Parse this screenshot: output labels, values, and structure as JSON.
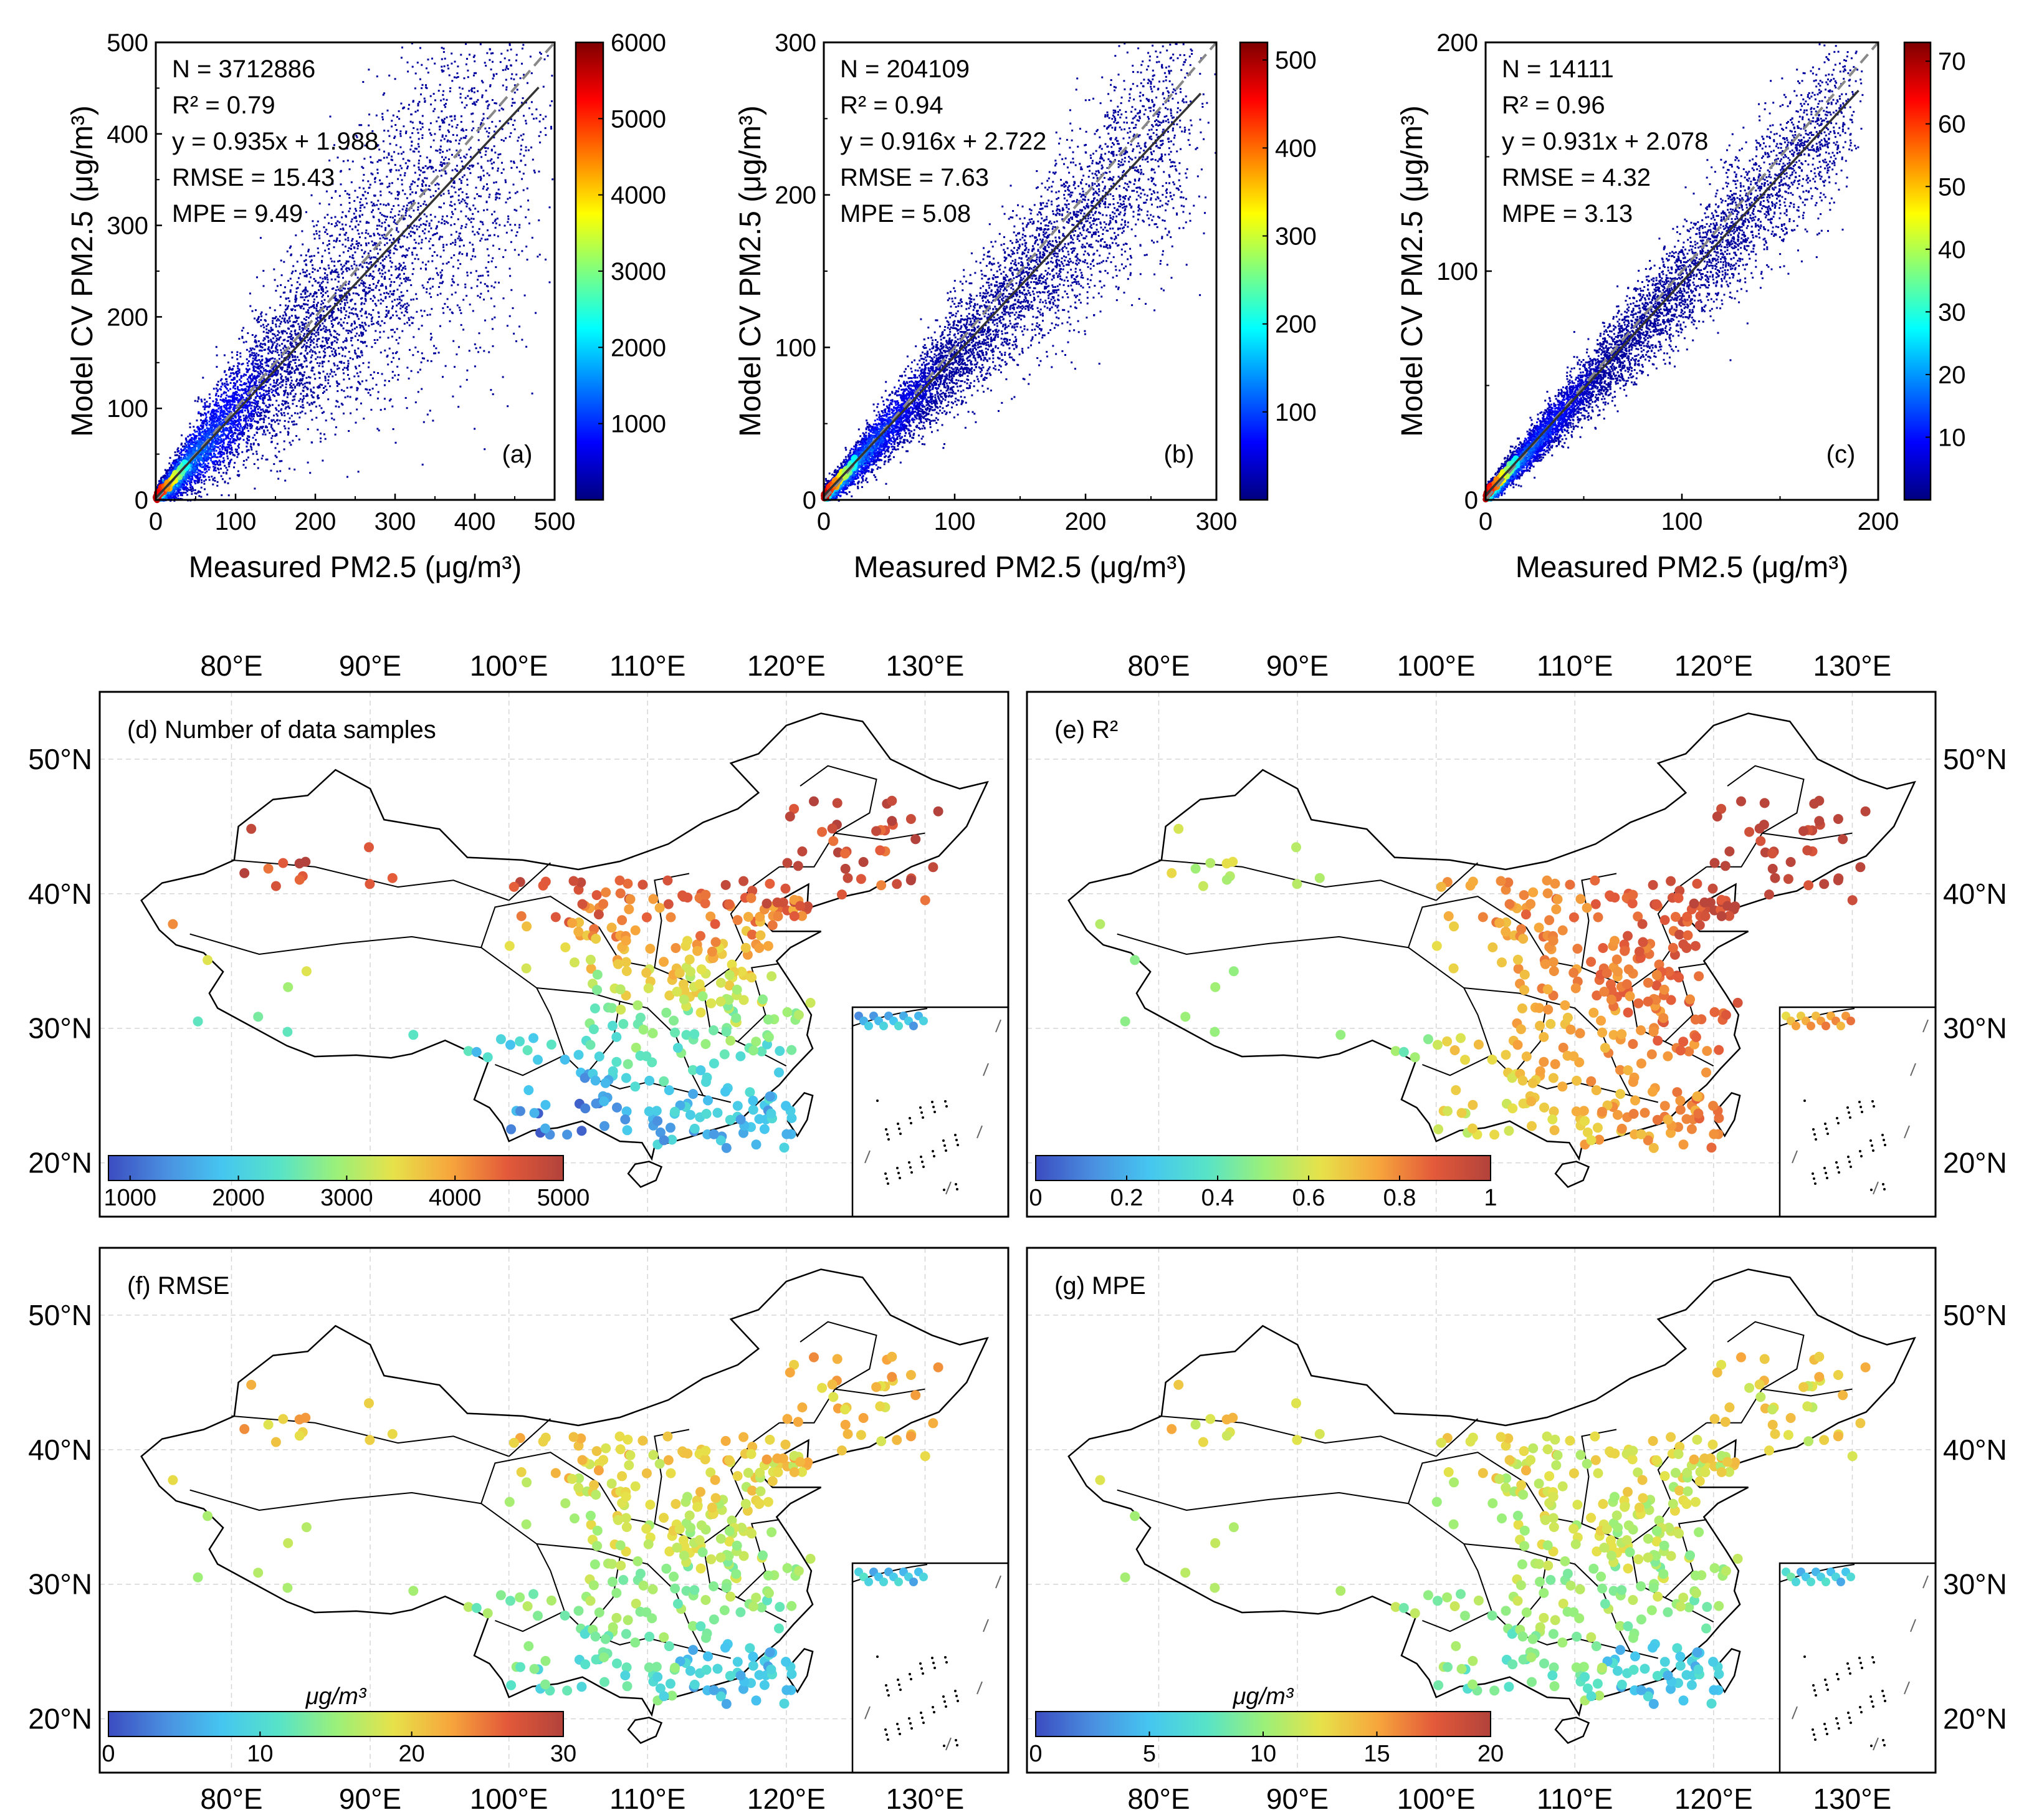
{
  "colors": {
    "jet": [
      "#00007f",
      "#0000ff",
      "#007fff",
      "#00ffff",
      "#7fff7f",
      "#ffff00",
      "#ff7f00",
      "#ff0000",
      "#7f0000"
    ],
    "map_cmap": [
      "#3b4cc0",
      "#4a8fe0",
      "#45c6f0",
      "#57e3c8",
      "#9af07a",
      "#e6e24a",
      "#f7a73c",
      "#e35a3a",
      "#b2423b"
    ],
    "fit_line": "#333333",
    "one_to_one": "#888888",
    "border": "#000000"
  },
  "chart_data": [
    {
      "type": "scatter",
      "panel": "(a)",
      "title": "(a)",
      "xlabel": "Measured PM2.5 (μg/m³)",
      "ylabel": "Model CV PM2.5 (μg/m³)",
      "xlim": [
        0,
        500
      ],
      "ylim": [
        0,
        500
      ],
      "xticks": [
        "0",
        "100",
        "200",
        "300",
        "400",
        "500"
      ],
      "yticks": [
        "0",
        "100",
        "200",
        "300",
        "400",
        "500"
      ],
      "stats": [
        "N = 3712886",
        "R² = 0.79",
        "y = 0.935x + 1.988",
        "RMSE = 15.43",
        "MPE = 9.49"
      ],
      "fit": {
        "slope": 0.935,
        "intercept": 1.988,
        "x_end": 480
      },
      "spread": 0.25,
      "density_max": 6000,
      "colorbar": {
        "min": 0,
        "max": 6000,
        "ticks": [
          "1000",
          "2000",
          "3000",
          "4000",
          "5000",
          "6000"
        ],
        "tick_values": [
          1000,
          2000,
          3000,
          4000,
          5000,
          6000
        ]
      }
    },
    {
      "type": "scatter",
      "panel": "(b)",
      "title": "(b)",
      "xlabel": "Measured PM2.5 (μg/m³)",
      "ylabel": "Model CV PM2.5 (μg/m³)",
      "xlim": [
        0,
        300
      ],
      "ylim": [
        0,
        300
      ],
      "xticks": [
        "0",
        "100",
        "200",
        "300"
      ],
      "yticks": [
        "0",
        "100",
        "200",
        "300"
      ],
      "stats": [
        "N = 204109",
        "R² = 0.94",
        "y = 0.916x + 2.722",
        "RMSE = 7.63",
        "MPE = 5.08"
      ],
      "fit": {
        "slope": 0.916,
        "intercept": 2.722,
        "x_end": 288
      },
      "spread": 0.14,
      "density_max": 520,
      "colorbar": {
        "min": 0,
        "max": 520,
        "ticks": [
          "100",
          "200",
          "300",
          "400",
          "500"
        ],
        "tick_values": [
          100,
          200,
          300,
          400,
          500
        ]
      }
    },
    {
      "type": "scatter",
      "panel": "(c)",
      "title": "(c)",
      "xlabel": "Measured PM2.5 (μg/m³)",
      "ylabel": "Model CV PM2.5 (μg/m³)",
      "xlim": [
        0,
        200
      ],
      "ylim": [
        0,
        200
      ],
      "xticks": [
        "0",
        "100",
        "200"
      ],
      "yticks": [
        "0",
        "100",
        "200"
      ],
      "stats": [
        "N = 14111",
        "R² = 0.96",
        "y = 0.931x + 2.078",
        "RMSE = 4.32",
        "MPE = 3.13"
      ],
      "fit": {
        "slope": 0.931,
        "intercept": 2.078,
        "x_end": 190
      },
      "spread": 0.1,
      "density_max": 73,
      "colorbar": {
        "min": 0,
        "max": 73,
        "ticks": [
          "10",
          "20",
          "30",
          "40",
          "50",
          "60",
          "70"
        ],
        "tick_values": [
          10,
          20,
          30,
          40,
          50,
          60,
          70
        ]
      }
    },
    {
      "type": "map",
      "panel": "(d)",
      "title": "(d) Number of data samples",
      "lon_ticks": [
        "80°E",
        "90°E",
        "100°E",
        "110°E",
        "120°E",
        "130°E"
      ],
      "lat_ticks": [
        "20°N",
        "30°N",
        "40°N",
        "50°N"
      ],
      "colorbar": {
        "min": 800,
        "max": 5000,
        "ticks": [
          "1000",
          "2000",
          "3000",
          "4000",
          "5000"
        ],
        "tick_values": [
          1000,
          2000,
          3000,
          4000,
          5000
        ],
        "unit": ""
      }
    },
    {
      "type": "map",
      "panel": "(e)",
      "title": "(e) R²",
      "lon_ticks": [
        "80°E",
        "90°E",
        "100°E",
        "110°E",
        "120°E",
        "130°E"
      ],
      "lat_ticks": [
        "20°N",
        "30°N",
        "40°N",
        "50°N"
      ],
      "colorbar": {
        "min": 0,
        "max": 1,
        "ticks": [
          "0",
          "0.2",
          "0.4",
          "0.6",
          "0.8",
          "1"
        ],
        "tick_values": [
          0,
          0.2,
          0.4,
          0.6,
          0.8,
          1
        ],
        "unit": ""
      }
    },
    {
      "type": "map",
      "panel": "(f)",
      "title": "(f) RMSE",
      "lon_ticks": [
        "80°E",
        "90°E",
        "100°E",
        "110°E",
        "120°E",
        "130°E"
      ],
      "lat_ticks": [
        "20°N",
        "30°N",
        "40°N",
        "50°N"
      ],
      "colorbar": {
        "min": 0,
        "max": 30,
        "ticks": [
          "0",
          "10",
          "20",
          "30"
        ],
        "tick_values": [
          0,
          10,
          20,
          30
        ],
        "unit": "μg/m³"
      }
    },
    {
      "type": "map",
      "panel": "(g)",
      "title": "(g) MPE",
      "lon_ticks": [
        "80°E",
        "90°E",
        "100°E",
        "110°E",
        "120°E",
        "130°E"
      ],
      "lat_ticks": [
        "20°N",
        "30°N",
        "40°N",
        "50°N"
      ],
      "colorbar": {
        "min": 0,
        "max": 20,
        "ticks": [
          "0",
          "5",
          "10",
          "15",
          "20"
        ],
        "tick_values": [
          0,
          5,
          10,
          15,
          20
        ],
        "unit": "μg/m³"
      }
    }
  ]
}
